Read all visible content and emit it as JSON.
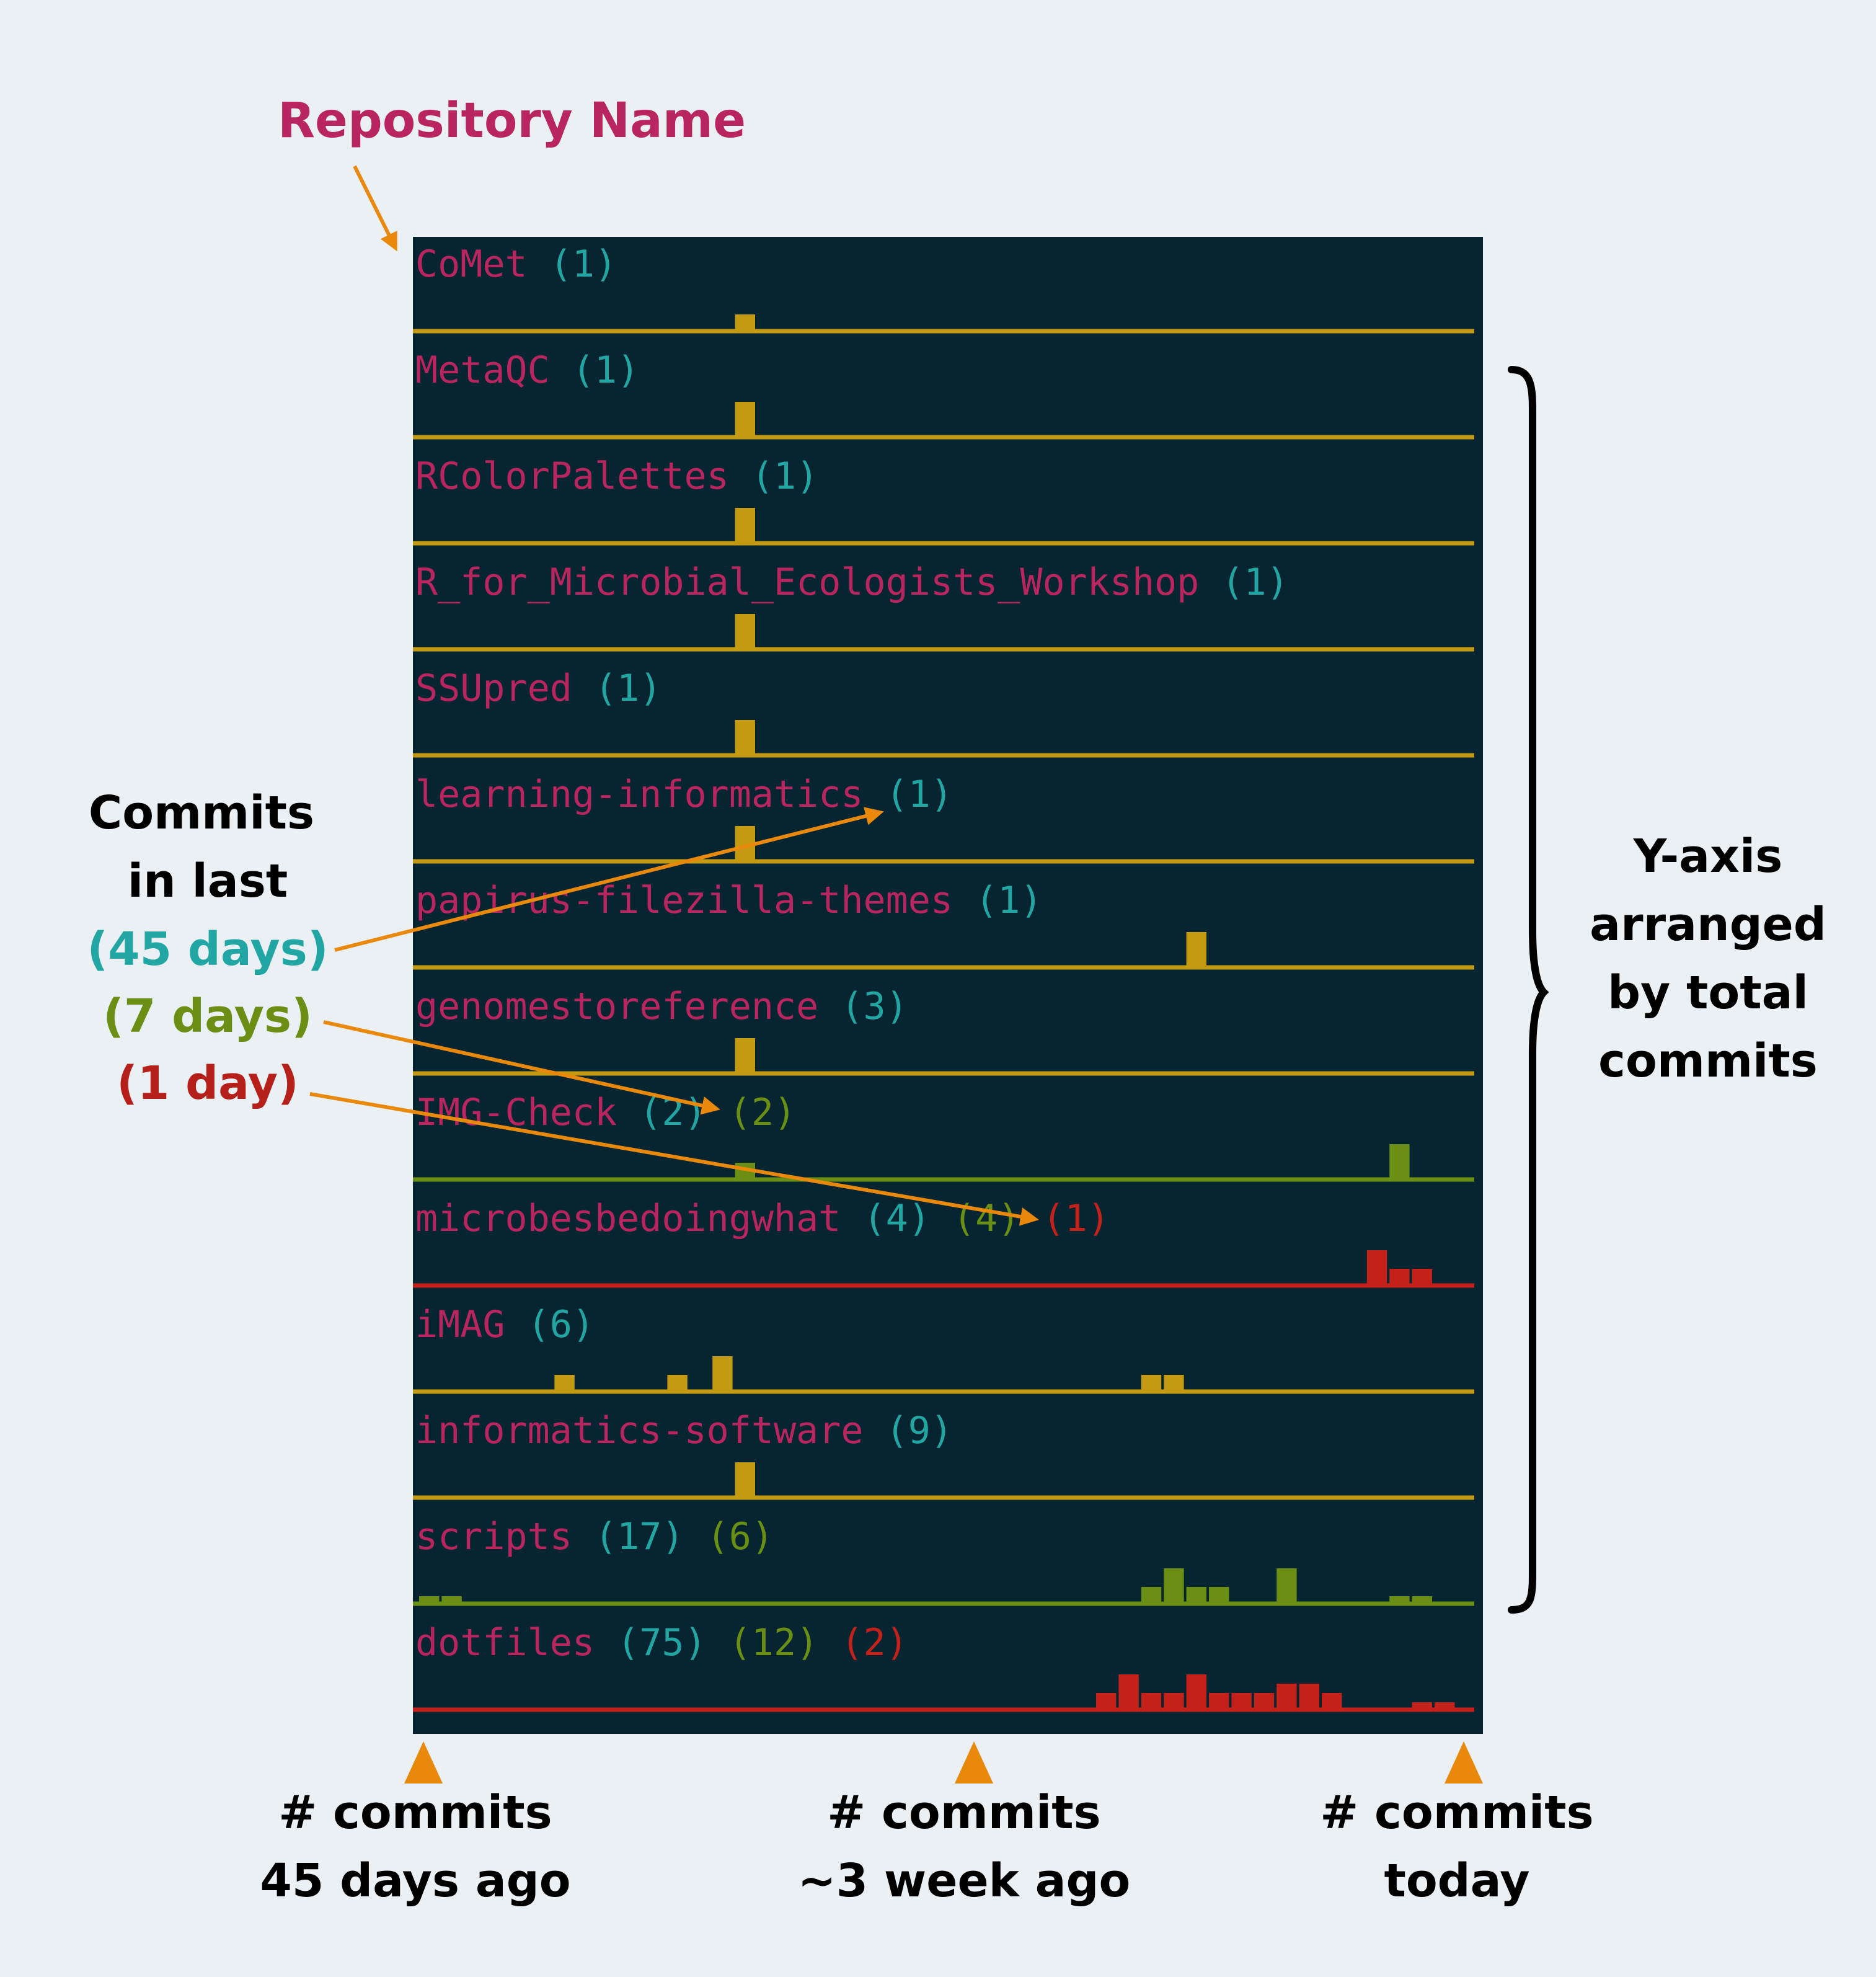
{
  "title": "Repository Name",
  "left_legend": {
    "heading_line1": "Commits",
    "heading_line2": "in last",
    "days45": "(45 days)",
    "days7": "(7 days)",
    "day1": "(1 day)"
  },
  "right_label": {
    "line1": "Y-axis",
    "line2": "arranged",
    "line3": "by total",
    "line4": "commits"
  },
  "bottom_labels": {
    "left_line1": "# commits",
    "left_line2": "45 days ago",
    "mid_line1": "# commits",
    "mid_line2": "~3 week ago",
    "right_line1": "# commits",
    "right_line2": "today"
  },
  "colors": {
    "background": "#ebf0f4",
    "panel": "#072531",
    "repo_name": "#b8255f",
    "count_45": "#22a6a4",
    "count_7": "#6b8e14",
    "count_1": "#c4211a",
    "arrow": "#e8890c",
    "spark_yellow": "#c49a13",
    "spark_green": "#6b8e14",
    "spark_red": "#c4211a"
  },
  "repos": [
    {
      "name": "CoMet",
      "c45": "(1)",
      "c7": "",
      "c1": "",
      "color": "yellow",
      "bins": [
        [
          14,
          1
        ]
      ]
    },
    {
      "name": "MetaQC",
      "c45": "(1)",
      "c7": "",
      "c1": "",
      "color": "yellow",
      "bins": [
        [
          14,
          2
        ]
      ]
    },
    {
      "name": "RColorPalettes",
      "c45": "(1)",
      "c7": "",
      "c1": "",
      "color": "yellow",
      "bins": [
        [
          14,
          2
        ]
      ]
    },
    {
      "name": "R_for_Microbial_Ecologists_Workshop",
      "c45": "(1)",
      "c7": "",
      "c1": "",
      "color": "yellow",
      "bins": [
        [
          14,
          2
        ]
      ]
    },
    {
      "name": "SSUpred",
      "c45": "(1)",
      "c7": "",
      "c1": "",
      "color": "yellow",
      "bins": [
        [
          14,
          2
        ]
      ]
    },
    {
      "name": "learning-informatics",
      "c45": "(1)",
      "c7": "",
      "c1": "",
      "color": "yellow",
      "bins": [
        [
          14,
          2
        ]
      ]
    },
    {
      "name": "papirus-filezilla-themes",
      "c45": "(1)",
      "c7": "",
      "c1": "",
      "color": "yellow",
      "bins": [
        [
          34,
          2
        ]
      ]
    },
    {
      "name": "genomestoreference",
      "c45": "(3)",
      "c7": "",
      "c1": "",
      "color": "yellow",
      "bins": [
        [
          14,
          2
        ]
      ]
    },
    {
      "name": "IMG-Check",
      "c45": "(2)",
      "c7": "(2)",
      "c1": "",
      "color": "green",
      "bins": [
        [
          14,
          1
        ],
        [
          43,
          2
        ]
      ]
    },
    {
      "name": "microbesbedoingwhat",
      "c45": "(4)",
      "c7": "(4)",
      "c1": "(1)",
      "color": "red",
      "bins": [
        [
          42,
          2
        ],
        [
          43,
          1
        ],
        [
          44,
          1
        ]
      ]
    },
    {
      "name": "iMAG",
      "c45": "(6)",
      "c7": "",
      "c1": "",
      "color": "yellow",
      "bins": [
        [
          6,
          1
        ],
        [
          11,
          1
        ],
        [
          13,
          2
        ],
        [
          32,
          1
        ],
        [
          33,
          1
        ]
      ]
    },
    {
      "name": "informatics-software",
      "c45": "(9)",
      "c7": "",
      "c1": "",
      "color": "yellow",
      "bins": [
        [
          14,
          2
        ]
      ]
    },
    {
      "name": "scripts",
      "c45": "(17)",
      "c7": "(6)",
      "c1": "",
      "color": "green",
      "bins": [
        [
          0,
          0.5
        ],
        [
          1,
          0.5
        ],
        [
          32,
          1
        ],
        [
          33,
          2
        ],
        [
          34,
          1
        ],
        [
          35,
          1
        ],
        [
          38,
          2
        ],
        [
          43,
          0.5
        ],
        [
          44,
          0.5
        ]
      ]
    },
    {
      "name": "dotfiles",
      "c45": "(75)",
      "c7": "(12)",
      "c1": "(2)",
      "color": "red",
      "bins": [
        [
          30,
          1
        ],
        [
          31,
          2
        ],
        [
          32,
          1
        ],
        [
          33,
          1
        ],
        [
          34,
          2
        ],
        [
          35,
          1
        ],
        [
          36,
          1
        ],
        [
          37,
          1
        ],
        [
          38,
          1.5
        ],
        [
          39,
          1.5
        ],
        [
          40,
          1
        ],
        [
          44,
          0.5
        ],
        [
          45,
          0.5
        ]
      ]
    }
  ]
}
